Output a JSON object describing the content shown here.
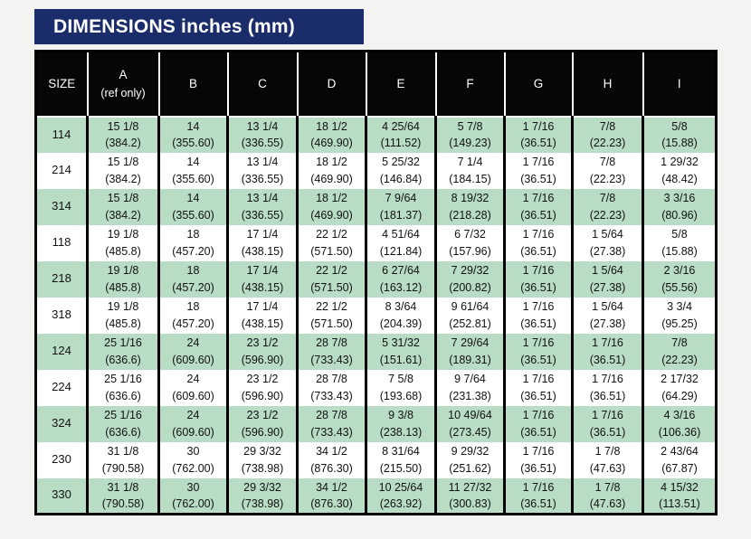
{
  "title": "DIMENSIONS inches (mm)",
  "colors": {
    "title_bg": "#1b2c6b",
    "header_bg": "#060606",
    "row_green": "#b8dcc4",
    "row_white": "#ffffff",
    "page_bg": "#f3f3f1"
  },
  "table": {
    "columns": [
      {
        "label": "SIZE",
        "sub": ""
      },
      {
        "label": "A",
        "sub": "(ref only)"
      },
      {
        "label": "B",
        "sub": ""
      },
      {
        "label": "C",
        "sub": ""
      },
      {
        "label": "D",
        "sub": ""
      },
      {
        "label": "E",
        "sub": ""
      },
      {
        "label": "F",
        "sub": ""
      },
      {
        "label": "G",
        "sub": ""
      },
      {
        "label": "H",
        "sub": ""
      },
      {
        "label": "I",
        "sub": ""
      }
    ],
    "rows": [
      {
        "size": "114",
        "shade": "green",
        "cells": [
          [
            "15 1/8",
            "(384.2)"
          ],
          [
            "14",
            "(355.60)"
          ],
          [
            "13 1/4",
            "(336.55)"
          ],
          [
            "18 1/2",
            "(469.90)"
          ],
          [
            "4 25/64",
            "(111.52)"
          ],
          [
            "5 7/8",
            "(149.23)"
          ],
          [
            "1 7/16",
            "(36.51)"
          ],
          [
            "7/8",
            "(22.23)"
          ],
          [
            "5/8",
            "(15.88)"
          ]
        ]
      },
      {
        "size": "214",
        "shade": "white",
        "cells": [
          [
            "15 1/8",
            "(384.2)"
          ],
          [
            "14",
            "(355.60)"
          ],
          [
            "13 1/4",
            "(336.55)"
          ],
          [
            "18 1/2",
            "(469.90)"
          ],
          [
            "5 25/32",
            "(146.84)"
          ],
          [
            "7 1/4",
            "(184.15)"
          ],
          [
            "1 7/16",
            "(36.51)"
          ],
          [
            "7/8",
            "(22.23)"
          ],
          [
            "1 29/32",
            "(48.42)"
          ]
        ]
      },
      {
        "size": "314",
        "shade": "green",
        "cells": [
          [
            "15 1/8",
            "(384.2)"
          ],
          [
            "14",
            "(355.60)"
          ],
          [
            "13 1/4",
            "(336.55)"
          ],
          [
            "18 1/2",
            "(469.90)"
          ],
          [
            "7 9/64",
            "(181.37)"
          ],
          [
            "8 19/32",
            "(218.28)"
          ],
          [
            "1 7/16",
            "(36.51)"
          ],
          [
            "7/8",
            "(22.23)"
          ],
          [
            "3 3/16",
            "(80.96)"
          ]
        ]
      },
      {
        "size": "118",
        "shade": "white",
        "cells": [
          [
            "19 1/8",
            "(485.8)"
          ],
          [
            "18",
            "(457.20)"
          ],
          [
            "17 1/4",
            "(438.15)"
          ],
          [
            "22 1/2",
            "(571.50)"
          ],
          [
            "4 51/64",
            "(121.84)"
          ],
          [
            "6 7/32",
            "(157.96)"
          ],
          [
            "1 7/16",
            "(36.51)"
          ],
          [
            "1 5/64",
            "(27.38)"
          ],
          [
            "5/8",
            "(15.88)"
          ]
        ]
      },
      {
        "size": "218",
        "shade": "green",
        "cells": [
          [
            "19 1/8",
            "(485.8)"
          ],
          [
            "18",
            "(457.20)"
          ],
          [
            "17 1/4",
            "(438.15)"
          ],
          [
            "22 1/2",
            "(571.50)"
          ],
          [
            "6 27/64",
            "(163.12)"
          ],
          [
            "7 29/32",
            "(200.82)"
          ],
          [
            "1 7/16",
            "(36.51)"
          ],
          [
            "1 5/64",
            "(27.38)"
          ],
          [
            "2 3/16",
            "(55.56)"
          ]
        ]
      },
      {
        "size": "318",
        "shade": "white",
        "cells": [
          [
            "19 1/8",
            "(485.8)"
          ],
          [
            "18",
            "(457.20)"
          ],
          [
            "17 1/4",
            "(438.15)"
          ],
          [
            "22 1/2",
            "(571.50)"
          ],
          [
            "8 3/64",
            "(204.39)"
          ],
          [
            "9 61/64",
            "(252.81)"
          ],
          [
            "1 7/16",
            "(36.51)"
          ],
          [
            "1 5/64",
            "(27.38)"
          ],
          [
            "3 3/4",
            "(95.25)"
          ]
        ]
      },
      {
        "size": "124",
        "shade": "green",
        "cells": [
          [
            "25 1/16",
            "(636.6)"
          ],
          [
            "24",
            "(609.60)"
          ],
          [
            "23 1/2",
            "(596.90)"
          ],
          [
            "28 7/8",
            "(733.43)"
          ],
          [
            "5 31/32",
            "(151.61)"
          ],
          [
            "7 29/64",
            "(189.31)"
          ],
          [
            "1 7/16",
            "(36.51)"
          ],
          [
            "1 7/16",
            "(36.51)"
          ],
          [
            "7/8",
            "(22.23)"
          ]
        ]
      },
      {
        "size": "224",
        "shade": "white",
        "cells": [
          [
            "25 1/16",
            "(636.6)"
          ],
          [
            "24",
            "(609.60)"
          ],
          [
            "23 1/2",
            "(596.90)"
          ],
          [
            "28 7/8",
            "(733.43)"
          ],
          [
            "7 5/8",
            "(193.68)"
          ],
          [
            "9 7/64",
            "(231.38)"
          ],
          [
            "1 7/16",
            "(36.51)"
          ],
          [
            "1 7/16",
            "(36.51)"
          ],
          [
            "2 17/32",
            "(64.29)"
          ]
        ]
      },
      {
        "size": "324",
        "shade": "green",
        "cells": [
          [
            "25 1/16",
            "(636.6)"
          ],
          [
            "24",
            "(609.60)"
          ],
          [
            "23 1/2",
            "(596.90)"
          ],
          [
            "28 7/8",
            "(733.43)"
          ],
          [
            "9 3/8",
            "(238.13)"
          ],
          [
            "10 49/64",
            "(273.45)"
          ],
          [
            "1 7/16",
            "(36.51)"
          ],
          [
            "1 7/16",
            "(36.51)"
          ],
          [
            "4 3/16",
            "(106.36)"
          ]
        ]
      },
      {
        "size": "230",
        "shade": "white",
        "cells": [
          [
            "31 1/8",
            "(790.58)"
          ],
          [
            "30",
            "(762.00)"
          ],
          [
            "29 3/32",
            "(738.98)"
          ],
          [
            "34 1/2",
            "(876.30)"
          ],
          [
            "8 31/64",
            "(215.50)"
          ],
          [
            "9 29/32",
            "(251.62)"
          ],
          [
            "1 7/16",
            "(36.51)"
          ],
          [
            "1 7/8",
            "(47.63)"
          ],
          [
            "2 43/64",
            "(67.87)"
          ]
        ]
      },
      {
        "size": "330",
        "shade": "green",
        "cells": [
          [
            "31 1/8",
            "(790.58)"
          ],
          [
            "30",
            "(762.00)"
          ],
          [
            "29 3/32",
            "(738.98)"
          ],
          [
            "34 1/2",
            "(876.30)"
          ],
          [
            "10 25/64",
            "(263.92)"
          ],
          [
            "11 27/32",
            "(300.83)"
          ],
          [
            "1 7/16",
            "(36.51)"
          ],
          [
            "1 7/8",
            "(47.63)"
          ],
          [
            "4 15/32",
            "(113.51)"
          ]
        ]
      }
    ]
  }
}
